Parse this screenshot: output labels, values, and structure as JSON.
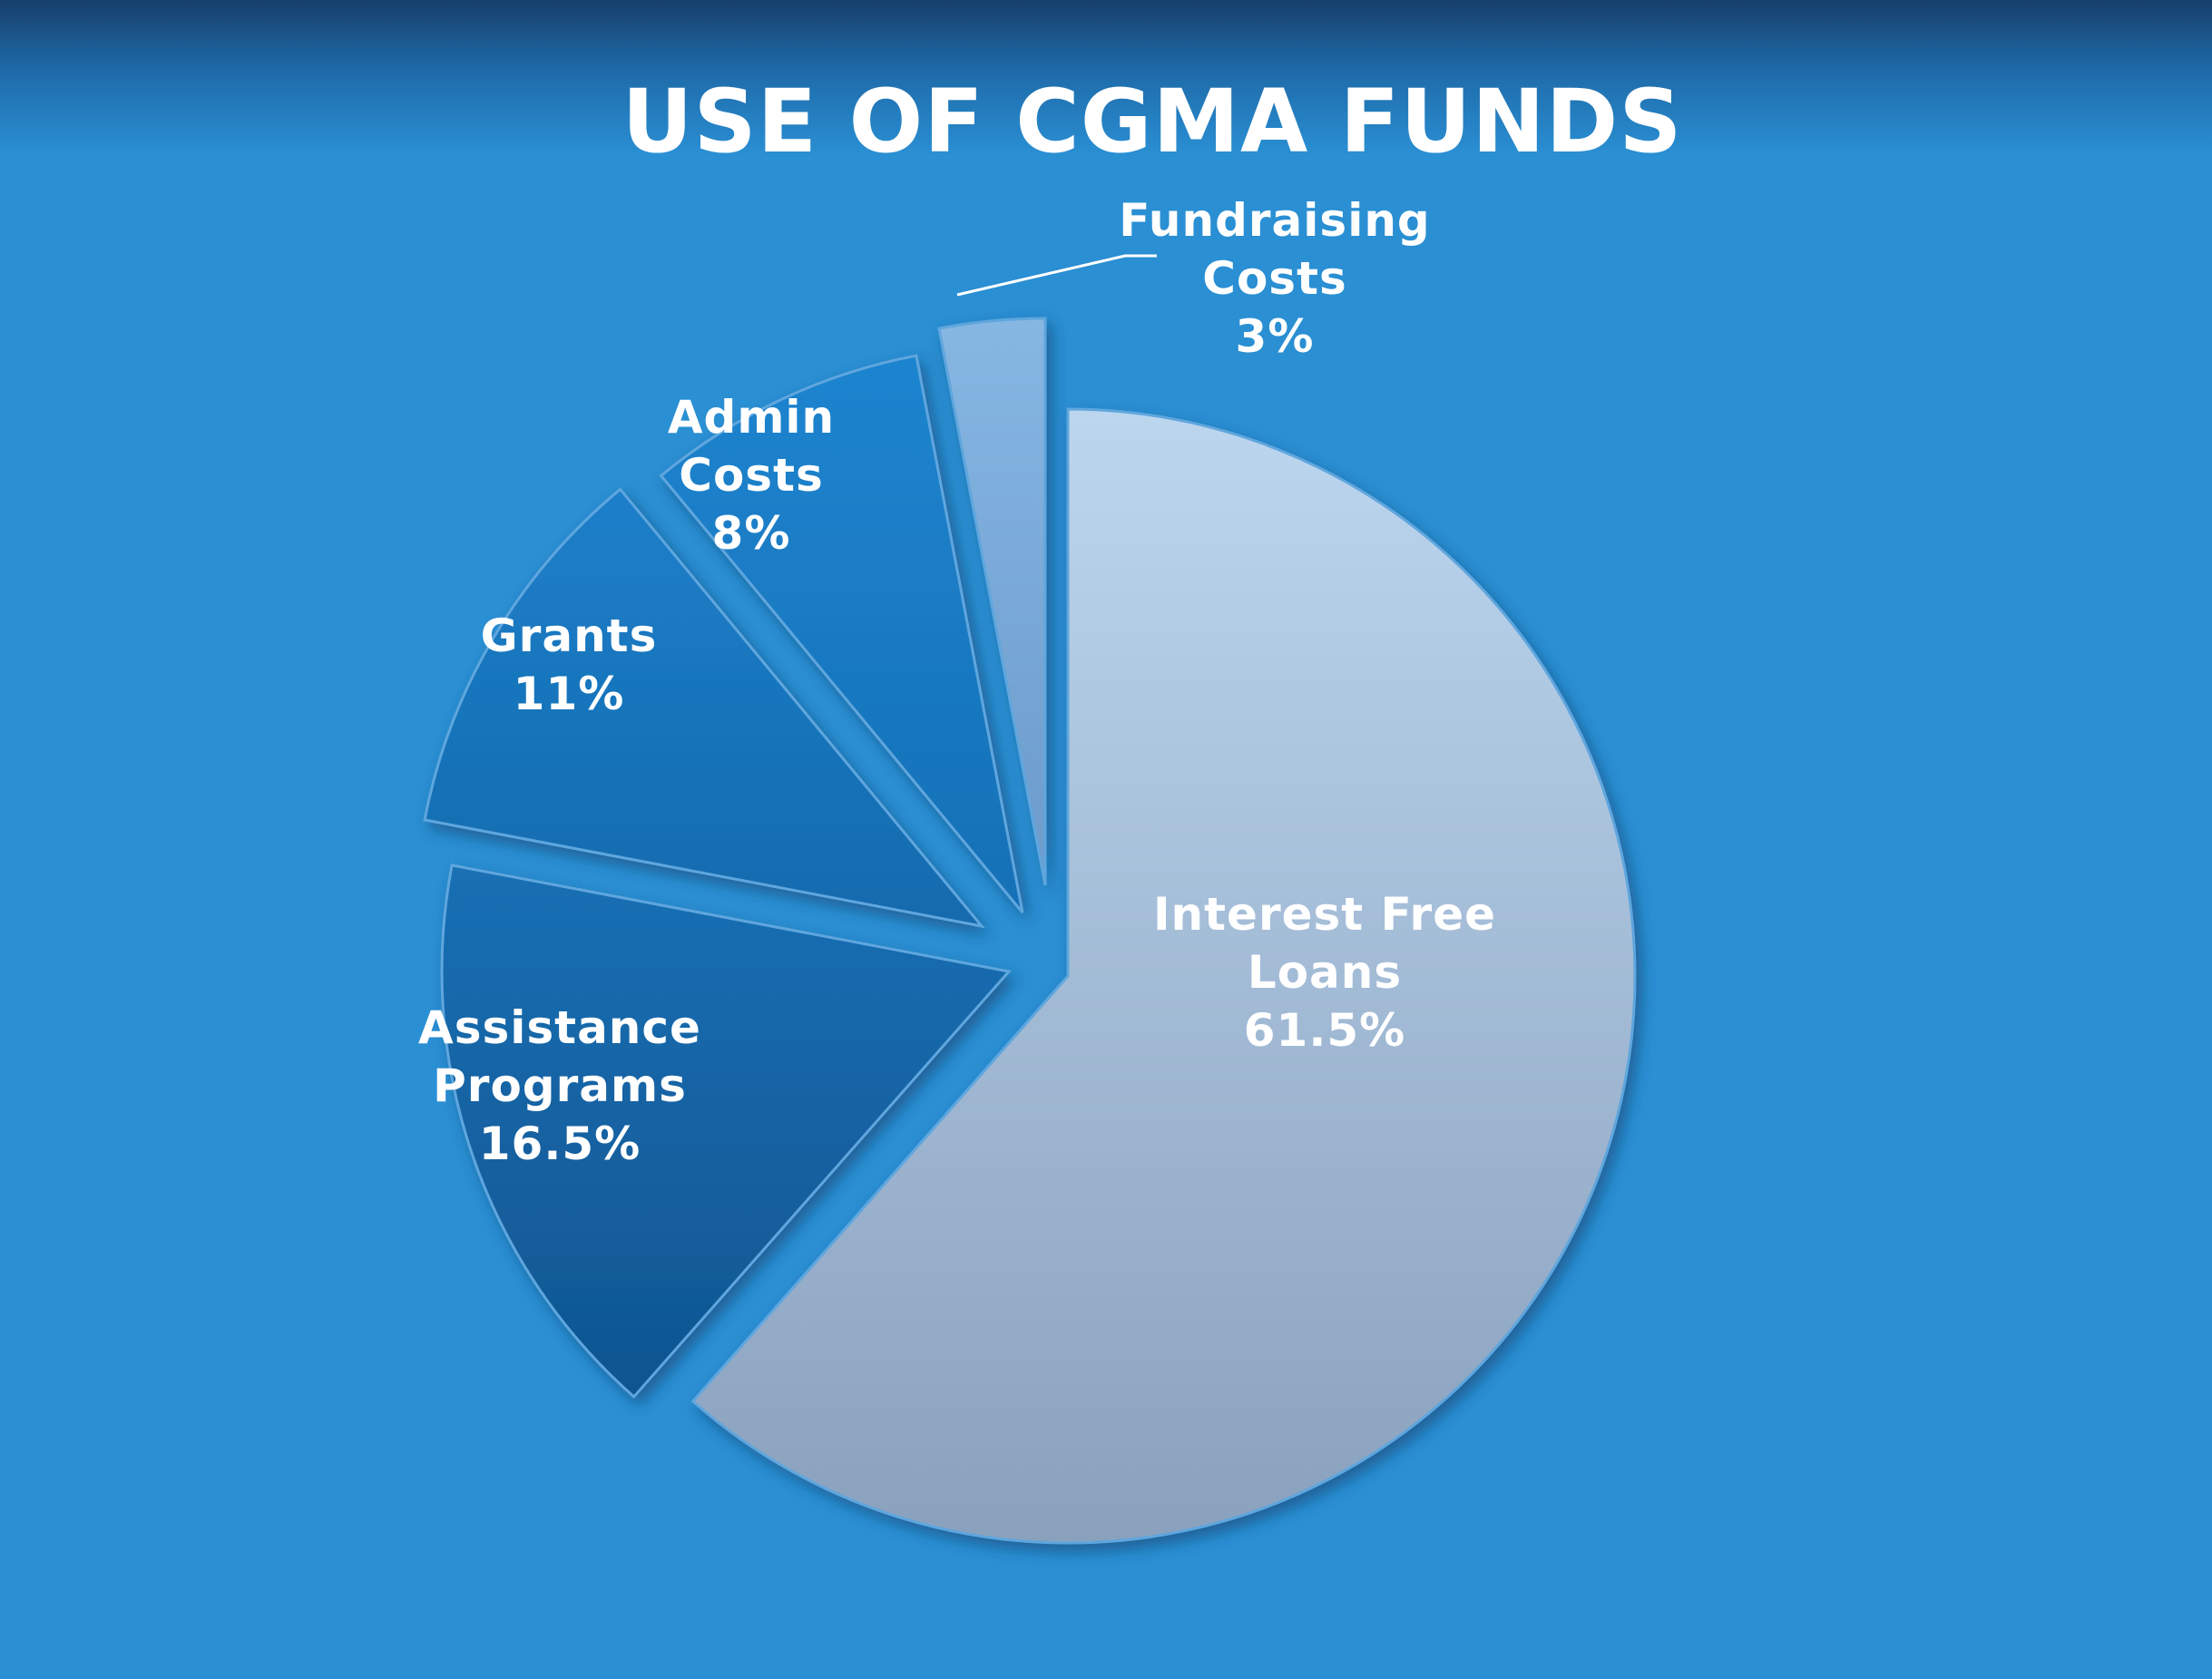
{
  "chart_data": {
    "type": "pie",
    "title": "USE OF CGMA FUNDS",
    "slices": [
      {
        "label_lines": [
          "Interest Free",
          "Loans"
        ],
        "value": 61.5,
        "value_label": "61.5%",
        "color": "#a8c4e2"
      },
      {
        "label_lines": [
          "Assistance",
          "Programs"
        ],
        "value": 16.5,
        "value_label": "16.5%",
        "color": "#1566a8"
      },
      {
        "label_lines": [
          "Grants"
        ],
        "value": 11,
        "value_label": "11%",
        "color": "#1876bf"
      },
      {
        "label_lines": [
          "Admin",
          "Costs"
        ],
        "value": 8,
        "value_label": "8%",
        "color": "#1a7cc6"
      },
      {
        "label_lines": [
          "Fundraising",
          "Costs"
        ],
        "value": 3,
        "value_label": "3%",
        "color": "#78abdc"
      }
    ],
    "background_color": "#2a8fd3",
    "start_angle_deg": 0,
    "direction": "clockwise",
    "exploded": true
  }
}
